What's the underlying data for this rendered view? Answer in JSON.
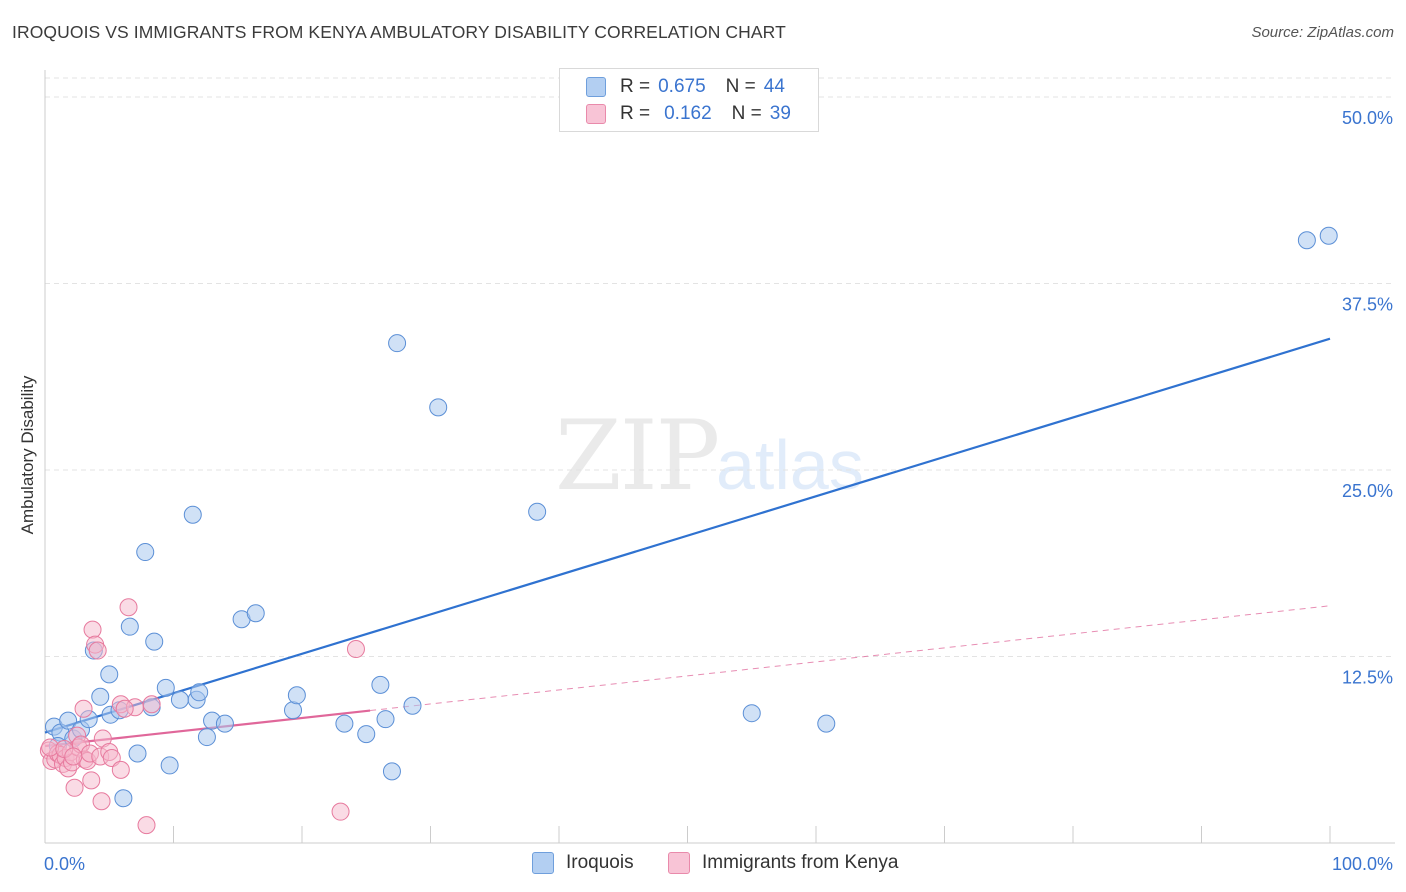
{
  "header": {
    "title": "IROQUOIS VS IMMIGRANTS FROM KENYA AMBULATORY DISABILITY CORRELATION CHART",
    "source": "Source: ZipAtlas.com"
  },
  "watermark": {
    "zip": "ZIP",
    "atlas": "atlas"
  },
  "legend": {
    "series1": {
      "r_label": "R =",
      "r_value": "0.675",
      "n_label": "N =",
      "n_value": "44"
    },
    "series2": {
      "r_label": "R =",
      "r_value": "0.162",
      "n_label": "N =",
      "n_value": "39"
    }
  },
  "bottom_legend": [
    "Iroquois",
    "Immigrants from Kenya"
  ],
  "colors": {
    "blue_fill": "#a9c8ef",
    "blue_stroke": "#5b8fd6",
    "blue_line": "#2f72d0",
    "pink_fill": "#f5b8cc",
    "pink_stroke": "#e77a9e",
    "pink_line": "#e0679a",
    "grid": "#e3e3e3",
    "tick_text": "#3a74cf"
  },
  "chart_data": {
    "type": "scatter",
    "title": "IROQUOIS VS IMMIGRANTS FROM KENYA AMBULATORY DISABILITY CORRELATION CHART",
    "xlabel": "",
    "ylabel": "Ambulatory Disability",
    "xlim": [
      0,
      100
    ],
    "ylim": [
      0,
      52
    ],
    "x_tick_labels": [
      "0.0%",
      "100.0%"
    ],
    "y_ticks": [
      12.5,
      25.0,
      37.5,
      50.0
    ],
    "y_tick_labels": [
      "12.5%",
      "25.0%",
      "37.5%",
      "50.0%"
    ],
    "grid": true,
    "legend_position": "top-center",
    "series": [
      {
        "name": "Iroquois",
        "R": 0.675,
        "N": 44,
        "trend": {
          "x": [
            0,
            100
          ],
          "y": [
            7.4,
            33.8
          ],
          "style": "solid"
        },
        "points": [
          [
            0.7,
            7.8
          ],
          [
            1.2,
            7.4
          ],
          [
            1.8,
            8.2
          ],
          [
            2.2,
            7.0
          ],
          [
            2.8,
            7.6
          ],
          [
            3.4,
            8.3
          ],
          [
            3.8,
            12.9
          ],
          [
            4.3,
            9.8
          ],
          [
            5.0,
            11.3
          ],
          [
            5.1,
            8.6
          ],
          [
            5.8,
            8.9
          ],
          [
            6.1,
            3.0
          ],
          [
            6.6,
            14.5
          ],
          [
            7.2,
            6.0
          ],
          [
            7.8,
            19.5
          ],
          [
            8.3,
            9.1
          ],
          [
            8.5,
            13.5
          ],
          [
            9.4,
            10.4
          ],
          [
            9.7,
            5.2
          ],
          [
            10.5,
            9.6
          ],
          [
            11.8,
            9.6
          ],
          [
            12.0,
            10.1
          ],
          [
            11.5,
            22.0
          ],
          [
            12.6,
            7.1
          ],
          [
            13.0,
            8.2
          ],
          [
            14.0,
            8.0
          ],
          [
            15.3,
            15.0
          ],
          [
            16.4,
            15.4
          ],
          [
            19.3,
            8.9
          ],
          [
            19.6,
            9.9
          ],
          [
            23.3,
            8.0
          ],
          [
            25.0,
            7.3
          ],
          [
            26.1,
            10.6
          ],
          [
            26.5,
            8.3
          ],
          [
            27.0,
            4.8
          ],
          [
            27.4,
            33.5
          ],
          [
            28.6,
            9.2
          ],
          [
            30.6,
            29.2
          ],
          [
            38.3,
            22.2
          ],
          [
            55.0,
            8.7
          ],
          [
            60.8,
            8.0
          ],
          [
            98.2,
            40.4
          ],
          [
            99.9,
            40.7
          ],
          [
            1.0,
            6.5
          ]
        ]
      },
      {
        "name": "Immigrants from Kenya",
        "R": 0.162,
        "N": 39,
        "trend": {
          "x": [
            0,
            100
          ],
          "y": [
            6.5,
            15.9
          ],
          "style": "solid-then-dashed",
          "solid_until": 25.3
        },
        "points": [
          [
            0.3,
            6.2
          ],
          [
            0.5,
            5.5
          ],
          [
            0.8,
            5.6
          ],
          [
            1.0,
            6.0
          ],
          [
            1.2,
            5.9
          ],
          [
            1.4,
            5.3
          ],
          [
            1.6,
            5.7
          ],
          [
            1.8,
            5.0
          ],
          [
            2.0,
            6.1
          ],
          [
            2.1,
            5.4
          ],
          [
            2.3,
            3.7
          ],
          [
            2.5,
            7.2
          ],
          [
            2.6,
            6.4
          ],
          [
            2.8,
            6.6
          ],
          [
            3.0,
            9.0
          ],
          [
            3.1,
            5.6
          ],
          [
            3.3,
            5.5
          ],
          [
            3.5,
            6.0
          ],
          [
            3.6,
            4.2
          ],
          [
            3.7,
            14.3
          ],
          [
            3.9,
            13.3
          ],
          [
            4.1,
            12.9
          ],
          [
            4.3,
            5.8
          ],
          [
            4.4,
            2.8
          ],
          [
            4.5,
            7.0
          ],
          [
            5.0,
            6.1
          ],
          [
            5.2,
            5.7
          ],
          [
            5.9,
            9.3
          ],
          [
            5.9,
            4.9
          ],
          [
            6.5,
            15.8
          ],
          [
            7.0,
            9.1
          ],
          [
            7.9,
            1.2
          ],
          [
            8.3,
            9.3
          ],
          [
            23.0,
            2.1
          ],
          [
            24.2,
            13.0
          ],
          [
            0.4,
            6.4
          ],
          [
            1.5,
            6.3
          ],
          [
            2.2,
            5.8
          ],
          [
            6.2,
            9.0
          ]
        ]
      }
    ]
  }
}
